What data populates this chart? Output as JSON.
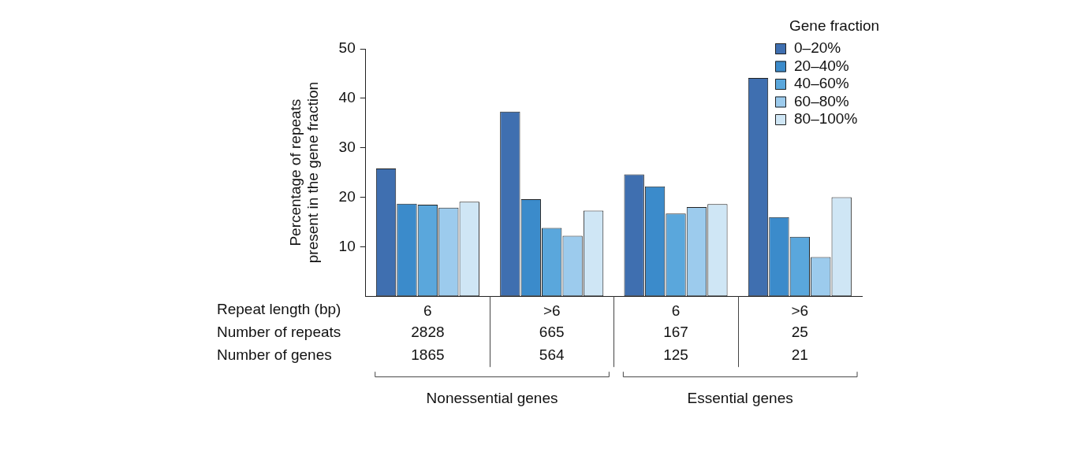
{
  "chart_data": {
    "type": "bar",
    "ylabel": "Percentage of repeats\npresent in the gene fraction",
    "xlabel": "Repeat length (bp)",
    "legend_title": "Gene fraction",
    "legend": "top right",
    "categories": [
      "6",
      ">6",
      "6",
      ">6"
    ],
    "series": [
      {
        "name": "0–20%",
        "color": "#3f6fb0",
        "values": [
          25.8,
          37.3,
          24.6,
          44.1
        ]
      },
      {
        "name": "20–40%",
        "color": "#3b8bcb",
        "values": [
          18.7,
          19.6,
          22.2,
          16.0
        ]
      },
      {
        "name": "40–60%",
        "color": "#5aa7dc",
        "values": [
          18.5,
          13.8,
          16.7,
          12.0
        ]
      },
      {
        "name": "60–80%",
        "color": "#9ccbed",
        "values": [
          17.9,
          12.2,
          18.0,
          7.9
        ]
      },
      {
        "name": "80–100%",
        "color": "#cfe6f5",
        "values": [
          19.1,
          17.3,
          18.6,
          20.0
        ]
      }
    ],
    "ylim": [
      0,
      50
    ],
    "yticks": [
      10,
      20,
      30,
      40,
      50
    ],
    "annotations": [
      "Number of repeats",
      "2828",
      "665",
      "167",
      "25",
      "Number of genes",
      "1865",
      "564",
      "125",
      "21",
      "Nonessential genes",
      "Essential genes"
    ]
  }
}
